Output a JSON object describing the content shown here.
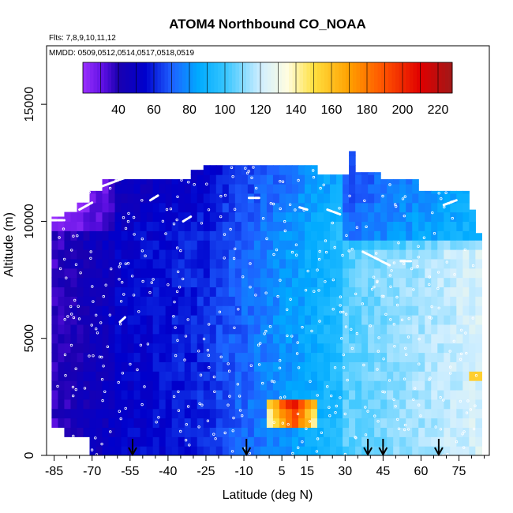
{
  "chart_data": {
    "type": "heatmap",
    "title": "ATOM4 Northbound CO_NOAA",
    "flights_label": "Flts: 7,8,9,10,11,12",
    "dates_label": "MMDD: 0509,0512,0514,0517,0518,0519",
    "xlabel": "Latitude (deg N)",
    "ylabel": "Altitude (m)",
    "xlim": [
      -88,
      87
    ],
    "ylim": [
      0,
      17500
    ],
    "x_ticks": [
      -85,
      -70,
      -55,
      -40,
      -25,
      -10,
      5,
      15,
      30,
      45,
      60,
      75
    ],
    "y_ticks": [
      0,
      5000,
      10000,
      15000
    ],
    "y_tick_labels": [
      "0",
      "5000",
      "10000",
      "15000"
    ],
    "colorbar": {
      "range": [
        20,
        228
      ],
      "ticks": [
        40,
        60,
        80,
        100,
        120,
        140,
        160,
        180,
        200,
        220
      ],
      "stops": [
        {
          "v": 20,
          "color": "#9b30ff"
        },
        {
          "v": 32,
          "color": "#5a0ee0"
        },
        {
          "v": 40,
          "color": "#1a00b0"
        },
        {
          "v": 55,
          "color": "#0000cc"
        },
        {
          "v": 70,
          "color": "#1e60ff"
        },
        {
          "v": 85,
          "color": "#00aaff"
        },
        {
          "v": 100,
          "color": "#35c5ff"
        },
        {
          "v": 120,
          "color": "#cfeeff"
        },
        {
          "v": 135,
          "color": "#fffde0"
        },
        {
          "v": 150,
          "color": "#ffe040"
        },
        {
          "v": 170,
          "color": "#ffa000"
        },
        {
          "v": 190,
          "color": "#ff5000"
        },
        {
          "v": 210,
          "color": "#e00000"
        },
        {
          "v": 228,
          "color": "#a01818"
        }
      ]
    },
    "flight_profiles_top_altitude_m": [
      {
        "lat_range": [
          -86,
          -82
        ],
        "top": 10200
      },
      {
        "lat_range": [
          -82,
          -77
        ],
        "top": 10400
      },
      {
        "lat_range": [
          -77,
          -72
        ],
        "top": 10800
      },
      {
        "lat_range": [
          -72,
          -66
        ],
        "top": 11300
      },
      {
        "lat_range": [
          -66,
          -40
        ],
        "top": 11800
      },
      {
        "lat_range": [
          -40,
          -30
        ],
        "top": 11800
      },
      {
        "lat_range": [
          -30,
          -25
        ],
        "top": 12200
      },
      {
        "lat_range": [
          -25,
          20
        ],
        "top": 12400
      },
      {
        "lat_range": [
          20,
          31
        ],
        "top": 12000
      },
      {
        "lat_range": [
          31,
          34
        ],
        "top": 13000
      },
      {
        "lat_range": [
          34,
          44
        ],
        "top": 12100
      },
      {
        "lat_range": [
          44,
          60
        ],
        "top": 11800
      },
      {
        "lat_range": [
          60,
          78
        ],
        "top": 11300
      },
      {
        "lat_range": [
          78,
          82
        ],
        "top": 10500
      },
      {
        "lat_range": [
          82,
          84
        ],
        "top": 9500
      }
    ],
    "surface_bottom_altitude_m": [
      {
        "lat_range": [
          -86,
          -83
        ],
        "top_of_gap": 1500
      },
      {
        "lat_range": [
          -83,
          -80
        ],
        "top_of_gap": 1200
      },
      {
        "lat_range": [
          -80,
          -72
        ],
        "top_of_gap": 800
      },
      {
        "lat_range": [
          -72,
          -60
        ],
        "top_of_gap": 0
      }
    ],
    "high_co_plume": {
      "lat_range": [
        -1,
        20
      ],
      "alt_range": [
        1300,
        2500
      ],
      "peak_value": 210
    },
    "arrow_latitudes": [
      -54,
      -9,
      39,
      45,
      67
    ]
  }
}
